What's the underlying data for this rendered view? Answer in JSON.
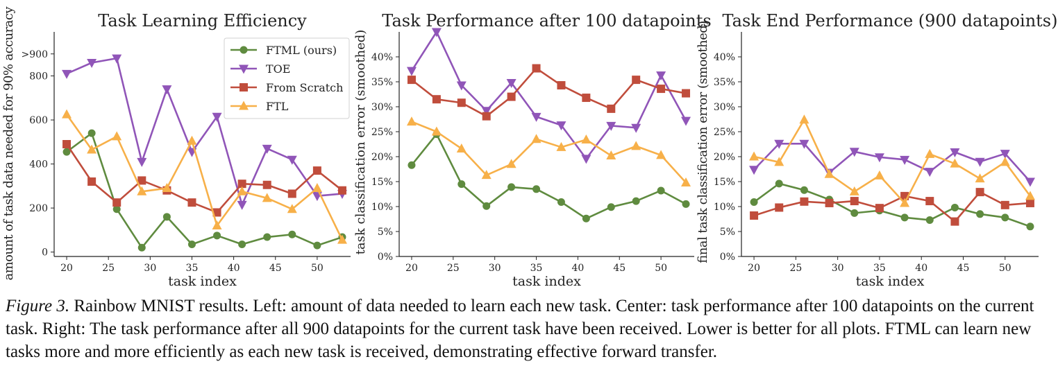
{
  "colors": {
    "FTML (ours)": "#5f8b3f",
    "TOE": "#9055b8",
    "From Scratch": "#c04d3c",
    "FTL": "#f7b049",
    "axis": "#222222"
  },
  "chart_data": [
    {
      "type": "line",
      "title": "Task Learning Efficiency",
      "xlabel": "task index",
      "ylabel": "amount of task data needed for 90% accuracy",
      "x": [
        20,
        23,
        26,
        29,
        32,
        35,
        38,
        41,
        44,
        47,
        50,
        53
      ],
      "xlim": [
        18.5,
        54
      ],
      "ylim": [
        -20,
        1000
      ],
      "xticks": [
        20,
        25,
        30,
        35,
        40,
        45,
        50
      ],
      "yticks": [
        0,
        200,
        400,
        600,
        800,
        900
      ],
      "yticklabels": [
        "0",
        "200",
        "400",
        "600",
        "800",
        ">900"
      ],
      "legend_position": "top-right",
      "series": [
        {
          "name": "FTML (ours)",
          "marker": "circle",
          "values": [
            455,
            540,
            195,
            20,
            160,
            35,
            75,
            35,
            68,
            80,
            30,
            68
          ]
        },
        {
          "name": "TOE",
          "marker": "triangle-down",
          "values": [
            810,
            860,
            880,
            410,
            740,
            455,
            615,
            215,
            470,
            420,
            255,
            265
          ]
        },
        {
          "name": "From Scratch",
          "marker": "square",
          "values": [
            490,
            320,
            225,
            325,
            280,
            225,
            180,
            310,
            305,
            265,
            370,
            280
          ]
        },
        {
          "name": "FTL",
          "marker": "triangle-up",
          "values": [
            625,
            465,
            525,
            275,
            290,
            505,
            120,
            275,
            245,
            195,
            290,
            55
          ]
        }
      ]
    },
    {
      "type": "line",
      "title": "Task Performance after 100 datapoints",
      "xlabel": "task index",
      "ylabel": "task classification error (smoothed)",
      "x": [
        20,
        23,
        26,
        29,
        32,
        35,
        38,
        41,
        44,
        47,
        50,
        53
      ],
      "xlim": [
        18.5,
        54
      ],
      "ylim": [
        0,
        45
      ],
      "xticks": [
        20,
        25,
        30,
        35,
        40,
        45,
        50
      ],
      "yticks": [
        0,
        5,
        10,
        15,
        20,
        25,
        30,
        35,
        40
      ],
      "yticklabels": [
        "0%",
        "5%",
        "10%",
        "15%",
        "20%",
        "25%",
        "30%",
        "35%",
        "40%"
      ],
      "series": [
        {
          "name": "FTML (ours)",
          "marker": "circle",
          "values": [
            18.3,
            24.5,
            14.5,
            10.1,
            13.9,
            13.5,
            10.9,
            7.6,
            9.9,
            11.1,
            13.2,
            10.5
          ]
        },
        {
          "name": "TOE",
          "marker": "triangle-down",
          "values": [
            37.2,
            45.0,
            34.3,
            29.2,
            34.8,
            28.0,
            26.3,
            19.6,
            26.2,
            25.8,
            36.3,
            27.2
          ]
        },
        {
          "name": "From Scratch",
          "marker": "square",
          "values": [
            35.4,
            31.5,
            30.8,
            28.1,
            32.0,
            37.7,
            34.3,
            31.8,
            29.6,
            35.4,
            33.6,
            32.7
          ]
        },
        {
          "name": "FTL",
          "marker": "triangle-up",
          "values": [
            27.0,
            25.0,
            21.6,
            16.3,
            18.5,
            23.5,
            21.9,
            23.4,
            20.2,
            22.1,
            20.3,
            14.8
          ]
        }
      ]
    },
    {
      "type": "line",
      "title": "Task End Performance (900 datapoints)",
      "xlabel": "task index",
      "ylabel": "final task classification error (smoothed)",
      "x": [
        20,
        23,
        26,
        29,
        32,
        35,
        38,
        41,
        44,
        47,
        50,
        53
      ],
      "xlim": [
        18.5,
        54
      ],
      "ylim": [
        0,
        45
      ],
      "xticks": [
        20,
        25,
        30,
        35,
        40,
        45,
        50
      ],
      "yticks": [
        0,
        5,
        10,
        15,
        20,
        25,
        30,
        35,
        40
      ],
      "yticklabels": [
        "0%",
        "5%",
        "10%",
        "15%",
        "20%",
        "25%",
        "30%",
        "35%",
        "40%"
      ],
      "series": [
        {
          "name": "FTML (ours)",
          "marker": "circle",
          "values": [
            10.9,
            14.6,
            13.3,
            11.4,
            8.7,
            9.2,
            7.8,
            7.3,
            9.8,
            8.5,
            7.8,
            6.0
          ]
        },
        {
          "name": "TOE",
          "marker": "triangle-down",
          "values": [
            17.4,
            22.6,
            22.6,
            16.8,
            21.0,
            19.9,
            19.4,
            17.0,
            20.9,
            19.0,
            20.6,
            15.0
          ]
        },
        {
          "name": "From Scratch",
          "marker": "square",
          "values": [
            8.2,
            9.8,
            11.0,
            10.7,
            11.1,
            9.7,
            12.1,
            11.1,
            7.0,
            12.9,
            10.3,
            10.7
          ]
        },
        {
          "name": "FTL",
          "marker": "triangle-up",
          "values": [
            20.0,
            18.9,
            27.4,
            16.5,
            13.0,
            16.2,
            10.7,
            20.5,
            18.6,
            15.6,
            18.9,
            12.1
          ]
        }
      ]
    }
  ],
  "caption": {
    "label": "Figure 3.",
    "text": " Rainbow MNIST results. Left: amount of data needed to learn each new task. Center: task performance after 100 datapoints on the current task. Right: The task performance after all 900 datapoints for the current task have been received. Lower is better for all plots. FTML can learn new tasks more and more efficiently as each new task is received, demonstrating effective forward transfer."
  }
}
